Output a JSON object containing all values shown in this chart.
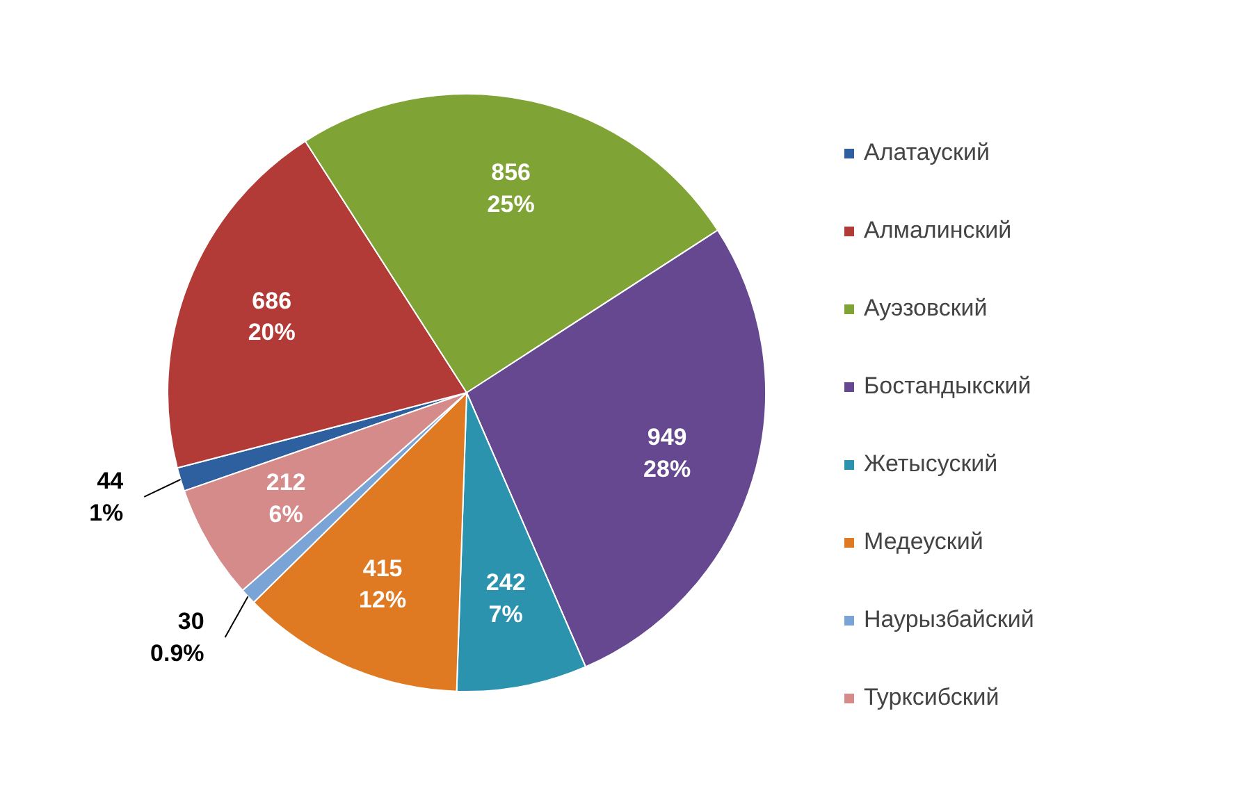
{
  "chart_data": {
    "type": "pie",
    "categories": [
      "Алатауский",
      "Алмалинский",
      "Ауэзовский",
      "Бостандыкский",
      "Жетысуский",
      "Медеуский",
      "Наурызбайский",
      "Турксибский"
    ],
    "values": [
      44,
      686,
      856,
      949,
      242,
      415,
      30,
      212
    ],
    "colors": [
      "#2e5f9e",
      "#b23a37",
      "#7fa435",
      "#65488f",
      "#2b93ad",
      "#e07a22",
      "#7aa3d6",
      "#d48b8a"
    ],
    "value_labels": [
      "44\n1%",
      "686\n20%",
      "856\n25%",
      "949\n28%",
      "242\n7%",
      "415\n12%",
      "30\n0.9%",
      "212\n6%"
    ],
    "legend": "right"
  }
}
